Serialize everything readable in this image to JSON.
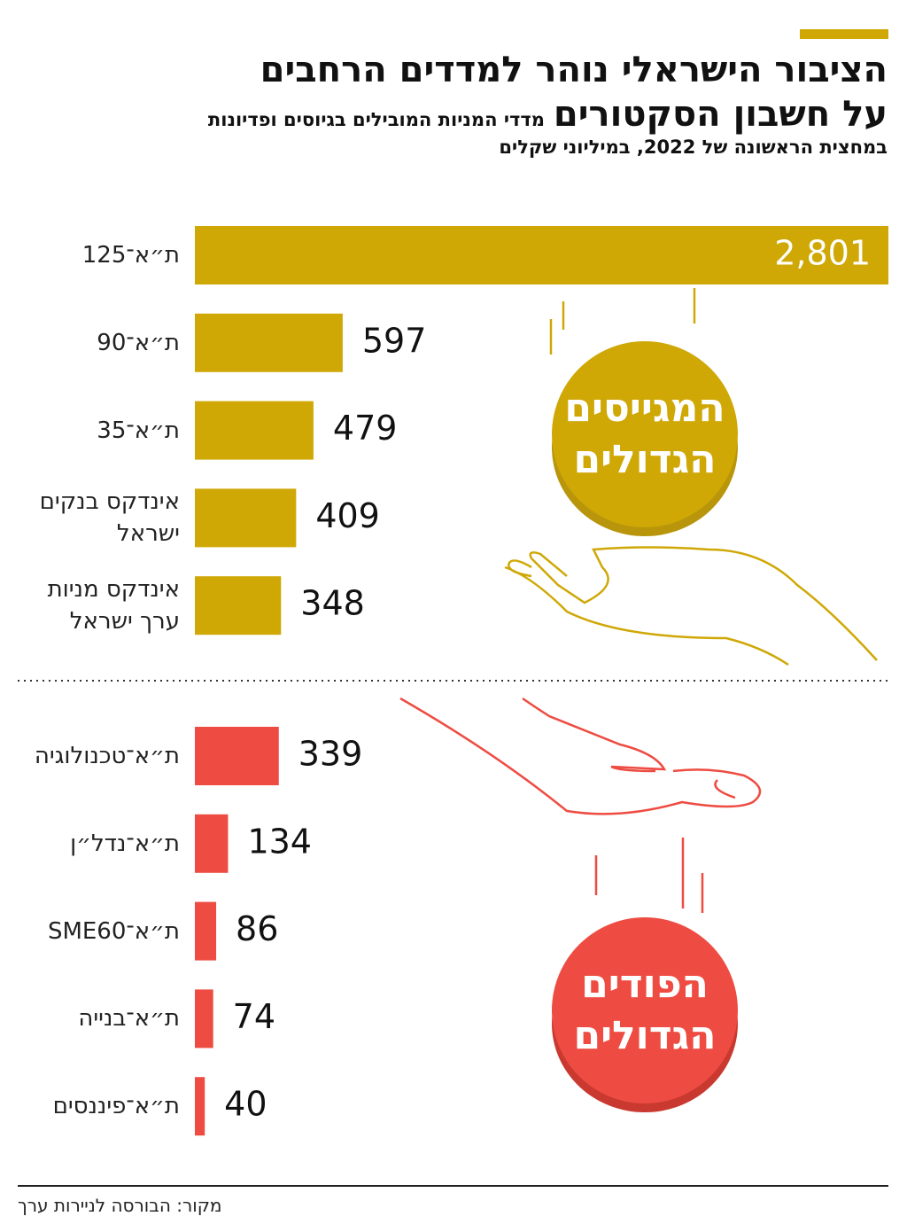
{
  "header": {
    "title": [
      "הציבור הישראלי נוהר למדדים הרחבים",
      "על חשבון הסקטורים"
    ],
    "subtitle": [
      "מדדי המניות המובילים בגיוסים ופדיונות",
      "במחצית הראשונה של 2022, במיליוני שקלים"
    ]
  },
  "chart_data": [
    {
      "type": "bar",
      "annotation": [
        "המגייסים",
        "הגדולים"
      ],
      "color": "#cfa806",
      "categories": [
        "ת״א־125",
        "ת״א־90",
        "ת״א־35",
        "אינדקס בנקים ישראל",
        "אינדקס מניות ערך ישראל"
      ],
      "values": [
        2801,
        597,
        479,
        409,
        348
      ],
      "value_labels": [
        "2,801",
        "597",
        "479",
        "409",
        "348"
      ],
      "xlim": [
        0,
        2801
      ]
    },
    {
      "type": "bar",
      "annotation": [
        "הפודים",
        "הגדולים"
      ],
      "color": "#ee4c42",
      "categories": [
        "ת״א־טכנולוגיה",
        "ת״א־נדל״ן",
        "ת״א־SME60",
        "ת״א־בנייה",
        "ת״א־פיננסים"
      ],
      "values": [
        339,
        134,
        86,
        74,
        40
      ],
      "xlim": [
        0,
        2801
      ]
    }
  ],
  "source": "מקור: הבורסה לניירות ערך"
}
